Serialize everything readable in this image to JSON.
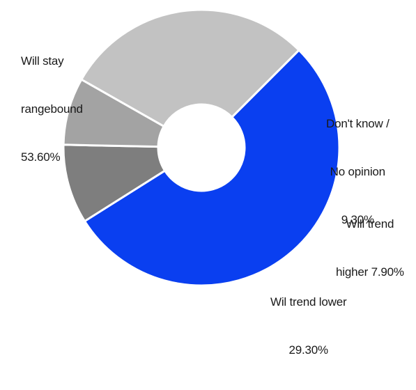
{
  "chart_data": {
    "type": "pie",
    "variant": "donut",
    "title": "",
    "legend": "none",
    "start_angle_deg": 45,
    "direction": "clockwise",
    "slices": [
      {
        "label_lines": [
          "Will stay",
          "rangebound",
          "53.60%"
        ],
        "value": 53.6,
        "color": "#0a3ff0"
      },
      {
        "label_lines": [
          "Don't know /",
          "No opinion",
          "9.30%"
        ],
        "value": 9.3,
        "color": "#7e7e7e"
      },
      {
        "label_lines": [
          "Will trend",
          "higher 7.90%"
        ],
        "value": 7.9,
        "color": "#a3a3a3"
      },
      {
        "label_lines": [
          "Wil trend lower",
          "29.30%"
        ],
        "value": 29.3,
        "color": "#c2c2c2"
      }
    ]
  }
}
